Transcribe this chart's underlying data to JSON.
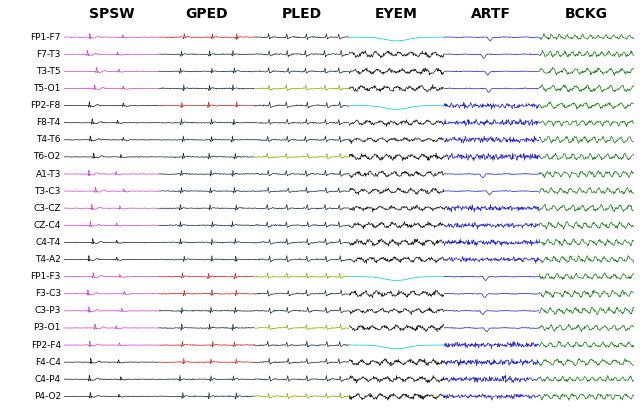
{
  "channels": [
    "FP1-F7",
    "F7-T3",
    "T3-T5",
    "T5-O1",
    "FP2-F8",
    "F8-T4",
    "T4-T6",
    "T6-O2",
    "A1-T3",
    "T3-C3",
    "C3-CZ",
    "CZ-C4",
    "C4-T4",
    "T4-A2",
    "FP1-F3",
    "F3-C3",
    "C3-P3",
    "P3-O1",
    "FP2-F4",
    "F4-C4",
    "C4-P4",
    "P4-O2"
  ],
  "pattern_types": [
    "SPSW",
    "GPED",
    "PLED",
    "EYEM",
    "ARTF",
    "BCKG"
  ],
  "colors": {
    "SPSW": {
      "magenta_channels": [
        0,
        1,
        2,
        3,
        8,
        9,
        10,
        11,
        14,
        15,
        16,
        17,
        18
      ],
      "dark_channels": [
        4,
        5,
        6,
        7,
        12,
        13,
        19,
        20,
        21
      ],
      "magenta": "#cc44cc",
      "dark": "#1a1a2e"
    },
    "GPED": {
      "red_channels": [
        0,
        4,
        14,
        15,
        18,
        19
      ],
      "dark_channels": [
        1,
        2,
        3,
        5,
        6,
        7,
        8,
        9,
        10,
        11,
        12,
        13,
        16,
        17,
        20,
        21
      ],
      "red": "#cc2222",
      "dark": "#1a2a3a"
    },
    "PLED": {
      "olive_channels": [
        3,
        7,
        14,
        17,
        21
      ],
      "dark_channels": [
        0,
        1,
        2,
        4,
        5,
        6,
        8,
        9,
        10,
        11,
        12,
        13,
        15,
        16,
        18,
        19,
        20
      ],
      "olive": "#88aa00",
      "dark": "#1a2a3a"
    },
    "EYEM": {
      "cyan_channels": [
        0,
        4,
        14,
        18
      ],
      "black_channels": [
        1,
        2,
        3,
        5,
        6,
        7,
        8,
        9,
        10,
        11,
        12,
        13,
        15,
        16,
        17,
        19,
        20,
        21
      ],
      "cyan": "#00cccc",
      "black": "#111111"
    },
    "ARTF": {
      "blue": "#2222cc"
    },
    "BCKG": {
      "green": "#117711"
    }
  },
  "title_fontsize": 10,
  "label_fontsize": 6.5,
  "figsize": [
    6.4,
    4.09
  ],
  "dpi": 100
}
